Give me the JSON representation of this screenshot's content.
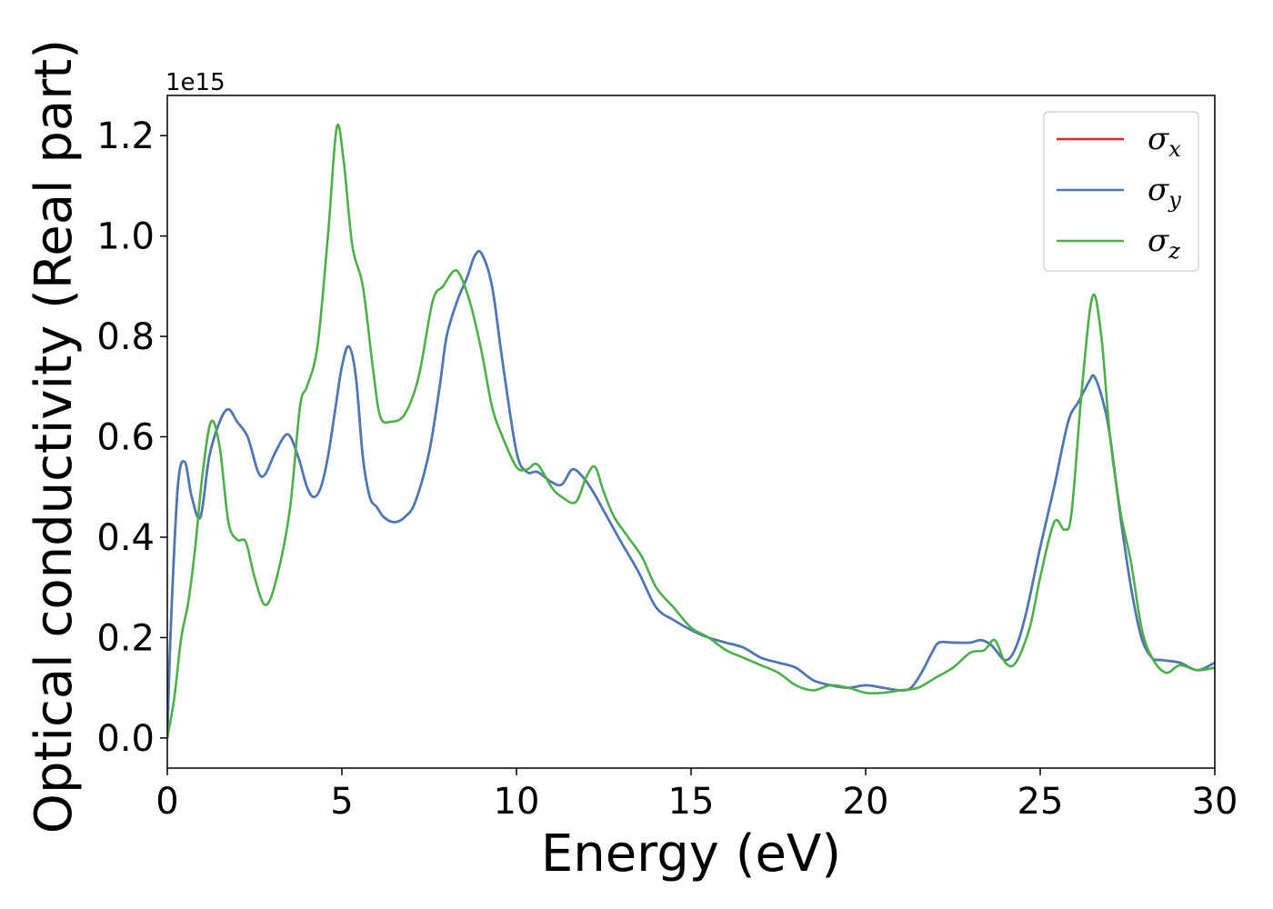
{
  "chart_data": {
    "type": "line",
    "xlabel": "Energy (eV)",
    "ylabel": "Optical conductivity (Real part)",
    "y_offset_text": "1e15",
    "xlim": [
      0,
      30
    ],
    "ylim": [
      -0.06,
      1.28
    ],
    "x_ticks": [
      0,
      5,
      10,
      15,
      20,
      25,
      30
    ],
    "x_tick_labels": [
      "0",
      "5",
      "10",
      "15",
      "20",
      "25",
      "30"
    ],
    "y_ticks": [
      0.0,
      0.2,
      0.4,
      0.6,
      0.8,
      1.0,
      1.2
    ],
    "y_tick_labels": [
      "0.0",
      "0.2",
      "0.4",
      "0.6",
      "0.8",
      "1.0",
      "1.2"
    ],
    "grid": false,
    "legend_position": "upper right",
    "series": [
      {
        "name": "σx",
        "symbol": "σ",
        "subscript": "x",
        "color": "#d62728",
        "x": [
          0,
          0.1,
          0.3,
          0.5,
          0.7,
          0.95,
          1.2,
          1.5,
          1.75,
          2.0,
          2.3,
          2.6,
          2.8,
          3.1,
          3.45,
          3.75,
          4.0,
          4.2,
          4.4,
          4.6,
          4.8,
          5.0,
          5.2,
          5.4,
          5.6,
          5.8,
          6.0,
          6.2,
          6.5,
          6.8,
          7.1,
          7.5,
          7.8,
          8.0,
          8.3,
          8.6,
          8.8,
          9.0,
          9.3,
          9.6,
          10.0,
          10.3,
          10.6,
          11.0,
          11.3,
          11.6,
          11.9,
          12.2,
          12.6,
          13.0,
          13.5,
          14.0,
          14.5,
          15.0,
          15.5,
          16.0,
          16.5,
          17.0,
          17.5,
          18.0,
          18.5,
          19.0,
          19.5,
          20.0,
          20.5,
          21.0,
          21.3,
          21.6,
          21.9,
          22.1,
          22.5,
          23.0,
          23.3,
          23.6,
          24.0,
          24.3,
          24.6,
          25.0,
          25.4,
          25.8,
          26.1,
          26.4,
          26.55,
          26.8,
          27.0,
          27.3,
          27.6,
          27.9,
          28.2,
          28.5,
          29.0,
          29.5,
          30.0
        ],
        "values": [
          0,
          0.22,
          0.5,
          0.55,
          0.48,
          0.44,
          0.56,
          0.63,
          0.655,
          0.63,
          0.6,
          0.53,
          0.525,
          0.57,
          0.605,
          0.56,
          0.5,
          0.48,
          0.5,
          0.56,
          0.65,
          0.74,
          0.78,
          0.72,
          0.56,
          0.48,
          0.46,
          0.44,
          0.43,
          0.44,
          0.47,
          0.57,
          0.7,
          0.8,
          0.87,
          0.92,
          0.96,
          0.965,
          0.9,
          0.75,
          0.57,
          0.53,
          0.53,
          0.51,
          0.505,
          0.535,
          0.52,
          0.49,
          0.44,
          0.39,
          0.33,
          0.26,
          0.235,
          0.215,
          0.2,
          0.19,
          0.18,
          0.16,
          0.15,
          0.14,
          0.115,
          0.105,
          0.1,
          0.105,
          0.1,
          0.095,
          0.1,
          0.13,
          0.17,
          0.19,
          0.19,
          0.19,
          0.195,
          0.185,
          0.155,
          0.18,
          0.25,
          0.38,
          0.5,
          0.63,
          0.67,
          0.71,
          0.72,
          0.67,
          0.6,
          0.44,
          0.3,
          0.2,
          0.16,
          0.155,
          0.15,
          0.135,
          0.15
        ]
      },
      {
        "name": "σy",
        "symbol": "σ",
        "subscript": "y",
        "color": "#4a7ab5",
        "x": [
          0,
          0.1,
          0.3,
          0.5,
          0.7,
          0.95,
          1.2,
          1.5,
          1.75,
          2.0,
          2.3,
          2.6,
          2.8,
          3.1,
          3.45,
          3.75,
          4.0,
          4.2,
          4.4,
          4.6,
          4.8,
          5.0,
          5.2,
          5.4,
          5.6,
          5.8,
          6.0,
          6.2,
          6.5,
          6.8,
          7.1,
          7.5,
          7.8,
          8.0,
          8.3,
          8.6,
          8.8,
          9.0,
          9.3,
          9.6,
          10.0,
          10.3,
          10.6,
          11.0,
          11.3,
          11.6,
          11.9,
          12.2,
          12.6,
          13.0,
          13.5,
          14.0,
          14.5,
          15.0,
          15.5,
          16.0,
          16.5,
          17.0,
          17.5,
          18.0,
          18.5,
          19.0,
          19.5,
          20.0,
          20.5,
          21.0,
          21.3,
          21.6,
          21.9,
          22.1,
          22.5,
          23.0,
          23.3,
          23.6,
          24.0,
          24.3,
          24.6,
          25.0,
          25.4,
          25.8,
          26.1,
          26.4,
          26.55,
          26.8,
          27.0,
          27.3,
          27.6,
          27.9,
          28.2,
          28.5,
          29.0,
          29.5,
          30.0
        ],
        "values": [
          0,
          0.22,
          0.5,
          0.55,
          0.48,
          0.44,
          0.56,
          0.63,
          0.655,
          0.63,
          0.6,
          0.53,
          0.525,
          0.57,
          0.605,
          0.56,
          0.5,
          0.48,
          0.5,
          0.56,
          0.65,
          0.74,
          0.78,
          0.72,
          0.56,
          0.48,
          0.46,
          0.44,
          0.43,
          0.44,
          0.47,
          0.57,
          0.7,
          0.8,
          0.87,
          0.92,
          0.96,
          0.965,
          0.9,
          0.75,
          0.57,
          0.53,
          0.53,
          0.51,
          0.505,
          0.535,
          0.52,
          0.49,
          0.44,
          0.39,
          0.33,
          0.26,
          0.235,
          0.215,
          0.2,
          0.19,
          0.18,
          0.16,
          0.15,
          0.14,
          0.115,
          0.105,
          0.1,
          0.105,
          0.1,
          0.095,
          0.1,
          0.13,
          0.17,
          0.19,
          0.19,
          0.19,
          0.195,
          0.185,
          0.155,
          0.18,
          0.25,
          0.38,
          0.5,
          0.63,
          0.67,
          0.71,
          0.72,
          0.67,
          0.6,
          0.44,
          0.3,
          0.2,
          0.16,
          0.155,
          0.15,
          0.135,
          0.15
        ]
      },
      {
        "name": "σz",
        "symbol": "σ",
        "subscript": "z",
        "color": "#4daf4a",
        "x": [
          0,
          0.2,
          0.4,
          0.6,
          0.8,
          1.0,
          1.25,
          1.5,
          1.75,
          2.0,
          2.25,
          2.5,
          2.8,
          3.1,
          3.5,
          3.8,
          4.0,
          4.3,
          4.6,
          4.85,
          5.05,
          5.3,
          5.6,
          5.9,
          6.1,
          6.4,
          6.8,
          7.2,
          7.6,
          7.9,
          8.2,
          8.4,
          8.7,
          9.0,
          9.3,
          9.6,
          10.0,
          10.3,
          10.6,
          11.0,
          11.3,
          11.7,
          12.0,
          12.25,
          12.5,
          12.8,
          13.2,
          13.6,
          14.0,
          14.5,
          15.0,
          15.5,
          16.0,
          16.5,
          17.0,
          17.5,
          18.0,
          18.5,
          19.0,
          19.5,
          20.0,
          20.5,
          21.0,
          21.5,
          22.0,
          22.5,
          23.0,
          23.4,
          23.7,
          24.0,
          24.3,
          24.7,
          25.0,
          25.4,
          25.7,
          25.9,
          26.2,
          26.5,
          26.75,
          27.0,
          27.3,
          27.6,
          27.9,
          28.2,
          28.6,
          29.0,
          29.5,
          30.0
        ],
        "values": [
          0,
          0.08,
          0.2,
          0.27,
          0.38,
          0.52,
          0.63,
          0.58,
          0.43,
          0.395,
          0.39,
          0.32,
          0.265,
          0.31,
          0.45,
          0.66,
          0.7,
          0.78,
          1.0,
          1.215,
          1.15,
          0.98,
          0.9,
          0.73,
          0.64,
          0.63,
          0.645,
          0.72,
          0.87,
          0.9,
          0.93,
          0.92,
          0.86,
          0.77,
          0.66,
          0.6,
          0.54,
          0.535,
          0.545,
          0.5,
          0.48,
          0.47,
          0.52,
          0.54,
          0.49,
          0.44,
          0.4,
          0.36,
          0.3,
          0.26,
          0.22,
          0.2,
          0.175,
          0.16,
          0.145,
          0.13,
          0.105,
          0.095,
          0.105,
          0.1,
          0.09,
          0.09,
          0.095,
          0.1,
          0.12,
          0.14,
          0.17,
          0.175,
          0.195,
          0.15,
          0.15,
          0.22,
          0.32,
          0.43,
          0.415,
          0.45,
          0.7,
          0.88,
          0.8,
          0.6,
          0.45,
          0.35,
          0.22,
          0.16,
          0.13,
          0.145,
          0.135,
          0.14
        ]
      }
    ]
  }
}
